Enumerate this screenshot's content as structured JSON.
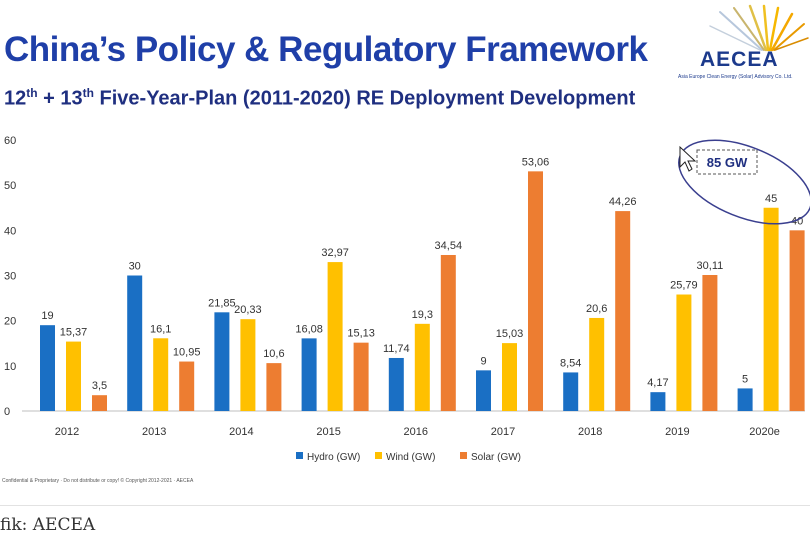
{
  "slide": {
    "title": "China’s Policy & Regulatory Framework",
    "subtitle_ord1": "12",
    "subtitle_sup1": "th",
    "subtitle_mid": " + 13",
    "subtitle_sup2": "th",
    "subtitle_rest": " Five-Year-Plan (2011-2020) RE Deployment Development",
    "logo_text": "AECEA",
    "logo_subtext": "Asia Europe Clean Energy (Solar) Advisory Co. Ltd.",
    "footer_note": "Confidential & Proprietary · Do not distribute or copy! © Copyright 2012-2021 · AECEA",
    "annotation": "85 GW"
  },
  "caption": "fik: AECEA",
  "colors": {
    "hydro": "#1a6fc4",
    "wind": "#ffc000",
    "solar": "#ed7d31",
    "title": "#1f3fa8",
    "oval": "#3a3f8f"
  },
  "chart_data": {
    "type": "bar",
    "categories": [
      "2012",
      "2013",
      "2014",
      "2015",
      "2016",
      "2017",
      "2018",
      "2019",
      "2020e"
    ],
    "series": [
      {
        "name": "Hydro (GW)",
        "values": [
          19,
          30,
          21.85,
          16.08,
          11.74,
          9,
          8.54,
          4.17,
          5
        ],
        "labels": [
          "19",
          "30",
          "21,85",
          "16,08",
          "11,74",
          "9",
          "8,54",
          "4,17",
          "5"
        ]
      },
      {
        "name": "Wind (GW)",
        "values": [
          15.37,
          16.1,
          20.33,
          32.97,
          19.3,
          15.03,
          20.6,
          25.79,
          45
        ],
        "labels": [
          "15,37",
          "16,1",
          "20,33",
          "32,97",
          "19,3",
          "15,03",
          "20,6",
          "25,79",
          "45"
        ]
      },
      {
        "name": "Solar (GW)",
        "values": [
          3.5,
          10.95,
          10.6,
          15.13,
          34.54,
          53.06,
          44.26,
          30.11,
          40
        ],
        "labels": [
          "3,5",
          "10,95",
          "10,6",
          "15,13",
          "34,54",
          "53,06",
          "44,26",
          "30,11",
          "40"
        ]
      }
    ],
    "yticks": [
      "0",
      "10",
      "20",
      "30",
      "40",
      "50",
      "60"
    ],
    "ylim": [
      0,
      60
    ],
    "legend": "bottom-center",
    "grid": false
  }
}
